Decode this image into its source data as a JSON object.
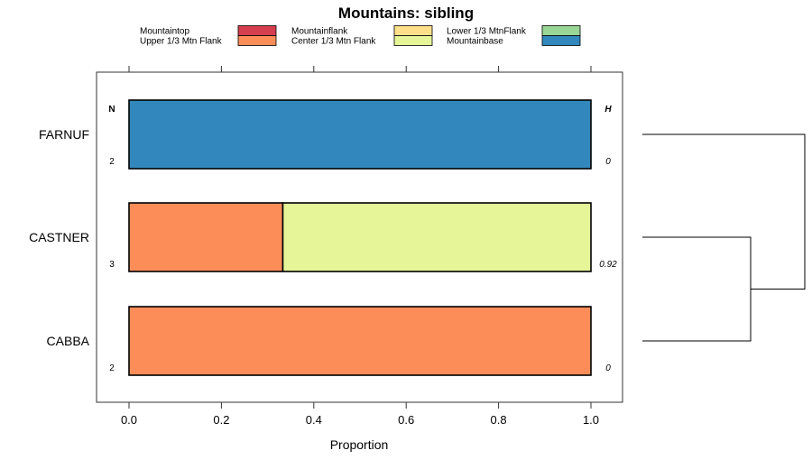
{
  "chart_data": {
    "type": "bar",
    "orientation": "horizontal",
    "stacked": true,
    "title": "Mountains: sibling",
    "xlabel": "Proportion",
    "ylabel": "",
    "xlim": [
      -0.07,
      1.07
    ],
    "x_ticks": [
      "0.0",
      "0.2",
      "0.4",
      "0.6",
      "0.8",
      "1.0"
    ],
    "legend": {
      "placement": "top",
      "entries": [
        {
          "name": "Mountaintop",
          "color": "#d53e4f"
        },
        {
          "name": "Upper 1/3 Mtn Flank",
          "color": "#fc8d59"
        },
        {
          "name": "Mountainflank",
          "color": "#fee08b"
        },
        {
          "name": "Center 1/3 Mtn Flank",
          "color": "#e6f598"
        },
        {
          "name": "Lower 1/3 MtnFlank",
          "color": "#99d594"
        },
        {
          "name": "Mountainbase",
          "color": "#3288bd"
        }
      ]
    },
    "n_header": "N",
    "h_header": "H",
    "categories": [
      "FARNUF",
      "CASTNER",
      "CABBA"
    ],
    "rows": [
      {
        "label": "FARNUF",
        "n": "2",
        "h": "0",
        "segments": [
          {
            "category": "Mountainbase",
            "value": 1.0
          }
        ]
      },
      {
        "label": "CASTNER",
        "n": "3",
        "h": "0.92",
        "segments": [
          {
            "category": "Upper 1/3 Mtn Flank",
            "value": 0.333
          },
          {
            "category": "Center 1/3 Mtn Flank",
            "value": 0.667
          }
        ]
      },
      {
        "label": "CABBA",
        "n": "2",
        "h": "0",
        "segments": [
          {
            "category": "Upper 1/3 Mtn Flank",
            "value": 1.0
          }
        ]
      }
    ],
    "dendrogram": {
      "leaves": [
        "FARNUF",
        "CASTNER",
        "CABBA"
      ],
      "merges": [
        {
          "join": [
            "CASTNER",
            "CABBA"
          ],
          "height": 0.38
        },
        {
          "join": [
            "FARNUF",
            "CASTNER+CABBA"
          ],
          "height": 1.0
        }
      ]
    }
  }
}
